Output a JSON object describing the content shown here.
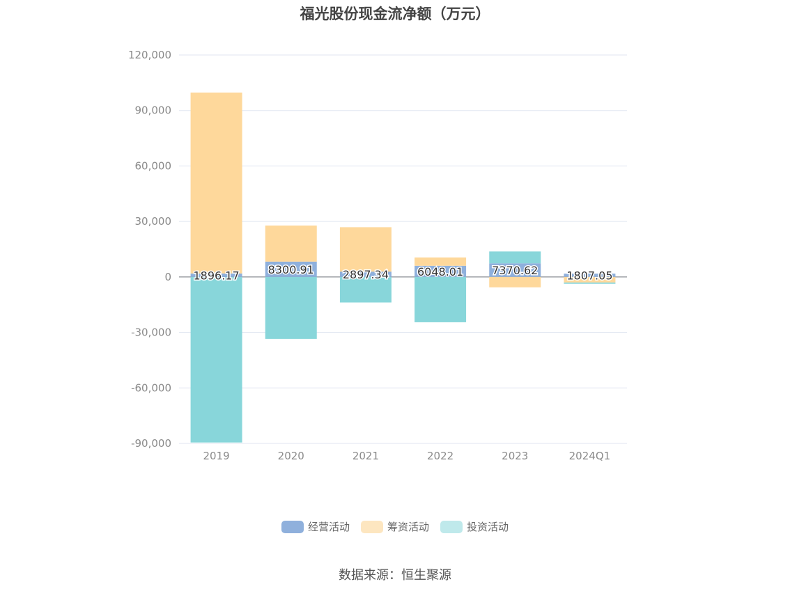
{
  "chart_data": {
    "type": "bar",
    "stacked": true,
    "title": "福光股份现金流净额（万元）",
    "categories": [
      "2019",
      "2020",
      "2021",
      "2022",
      "2023",
      "2024Q1"
    ],
    "series": [
      {
        "name": "经营活动",
        "color": "#8fb0dc",
        "values": [
          1896.17,
          8300.91,
          2897.34,
          6048.01,
          7370.62,
          1807.05
        ]
      },
      {
        "name": "筹资活动",
        "color": "#fed89b",
        "values": [
          97800,
          19500,
          24000,
          4500,
          -5600,
          -3000
        ]
      },
      {
        "name": "投资活动",
        "color": "#88d6da",
        "values": [
          -89500,
          -33500,
          -13800,
          -24500,
          6400,
          -700
        ]
      }
    ],
    "data_labels": [
      "1896.17",
      "8300.91",
      "2897.34",
      "6048.01",
      "7370.62",
      "1807.05"
    ],
    "ylim": [
      -90000,
      120000
    ],
    "yticks": [
      120000,
      90000,
      60000,
      30000,
      0,
      -30000,
      -60000,
      -90000
    ],
    "ytick_labels": [
      "120,000",
      "90,000",
      "60,000",
      "30,000",
      "0",
      "-30,000",
      "-60,000",
      "-90,000"
    ],
    "grid": true,
    "legend_position": "bottom-center",
    "xlabel": "",
    "ylabel": ""
  },
  "legend": {
    "items": [
      {
        "label": "经营活动",
        "color": "#8fb0dc"
      },
      {
        "label": "筹资活动",
        "color": "#fde6c0"
      },
      {
        "label": "投资活动",
        "color": "#bfe9eb"
      }
    ]
  },
  "source": {
    "text": "数据来源：恒生聚源"
  }
}
